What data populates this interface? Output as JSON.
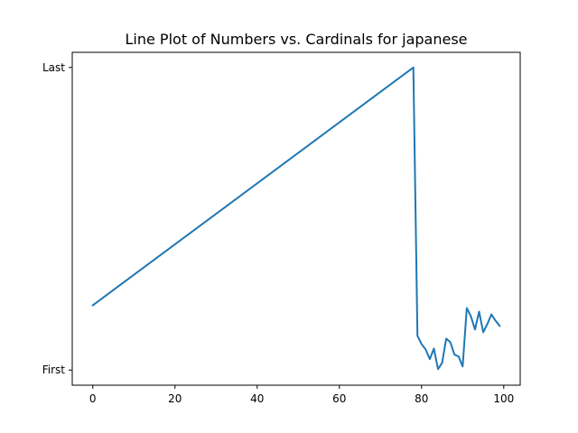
{
  "chart_data": {
    "type": "line",
    "title": "Line Plot of Numbers vs. Cardinals for japanese",
    "xlabel": "",
    "ylabel": "",
    "xlim": [
      -5,
      104
    ],
    "ylim": [
      -0.05,
      1.05
    ],
    "x_ticks": [
      0,
      20,
      40,
      60,
      80,
      100
    ],
    "y_ticks": [
      {
        "value": 0,
        "label": "First"
      },
      {
        "value": 1,
        "label": "Last"
      }
    ],
    "grid": false,
    "colors": {
      "line": "#1f77b4"
    },
    "series": [
      {
        "x": [
          0,
          78,
          79,
          80,
          81,
          82,
          83,
          84,
          85,
          86,
          87,
          88,
          89,
          90,
          91,
          92,
          93,
          94,
          95,
          96,
          97,
          98,
          99
        ],
        "y": [
          0.214,
          1.0,
          0.113,
          0.086,
          0.068,
          0.036,
          0.071,
          0.003,
          0.024,
          0.104,
          0.092,
          0.051,
          0.045,
          0.012,
          0.205,
          0.178,
          0.134,
          0.193,
          0.125,
          0.152,
          0.184,
          0.163,
          0.146
        ]
      }
    ]
  }
}
